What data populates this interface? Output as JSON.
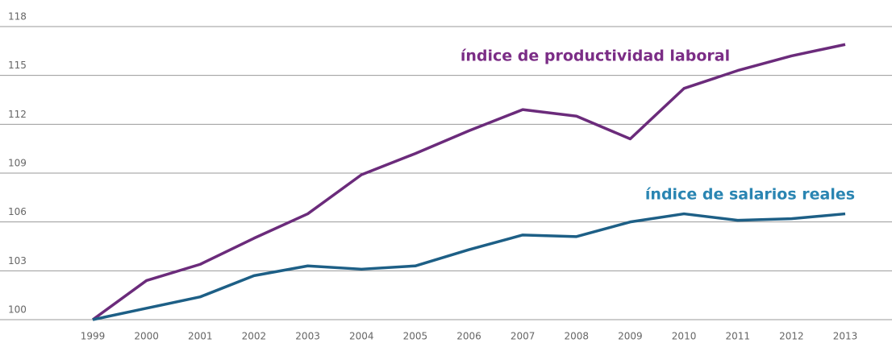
{
  "chart_data": {
    "type": "line",
    "x": [
      "1999",
      "2000",
      "2001",
      "2002",
      "2003",
      "2004",
      "2005",
      "2006",
      "2007",
      "2008",
      "2009",
      "2010",
      "2011",
      "2012",
      "2013"
    ],
    "series": [
      {
        "name": "índice de productividad laboral",
        "color": "#6b2b7b",
        "values": [
          100,
          102.4,
          103.4,
          105,
          106.5,
          108.9,
          110.2,
          111.6,
          112.9,
          112.5,
          111.1,
          114.2,
          115.3,
          116.2,
          116.9
        ]
      },
      {
        "name": "índice de salarios reales",
        "color": "#1d5f86",
        "values": [
          100,
          100.7,
          101.4,
          102.7,
          103.3,
          103.1,
          103.3,
          104.3,
          105.2,
          105.1,
          106,
          106.5,
          106.1,
          106.2,
          106.5
        ]
      }
    ],
    "ylim": [
      100,
      118
    ],
    "yticks": [
      100,
      103,
      106,
      109,
      112,
      115,
      118
    ],
    "grid": true
  }
}
